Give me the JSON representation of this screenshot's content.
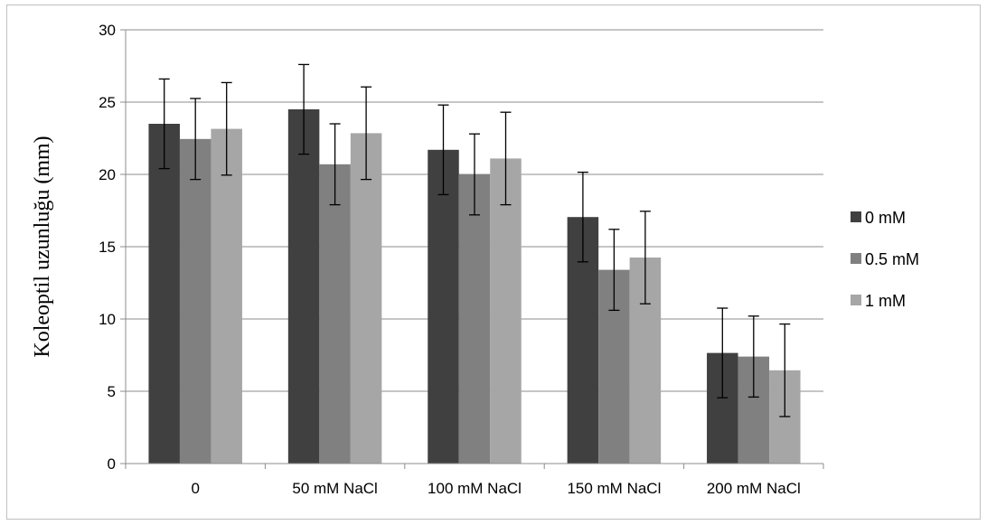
{
  "chart_data": {
    "type": "bar",
    "title": "",
    "xlabel": "",
    "ylabel": "Koleoptil uzunluğu (mm)",
    "ylim": [
      0,
      30
    ],
    "yticks": [
      0,
      5,
      10,
      15,
      20,
      25,
      30
    ],
    "grid": true,
    "legend_position": "right",
    "categories": [
      "0",
      "50 mM NaCl",
      "100 mM NaCl",
      "150 mM NaCl",
      "200 mM NaCl"
    ],
    "series": [
      {
        "name": "0 mM",
        "color": "#404040",
        "values": [
          23.5,
          24.5,
          21.7,
          17.05,
          7.65
        ],
        "errors": [
          3.1,
          3.1,
          3.1,
          3.1,
          3.1
        ]
      },
      {
        "name": "0.5 mM",
        "color": "#808080",
        "values": [
          22.45,
          20.7,
          20.0,
          13.4,
          7.4
        ],
        "errors": [
          2.8,
          2.8,
          2.8,
          2.8,
          2.8
        ]
      },
      {
        "name": "1 mM",
        "color": "#a6a6a6",
        "values": [
          23.15,
          22.85,
          21.1,
          14.25,
          6.45
        ],
        "errors": [
          3.2,
          3.2,
          3.2,
          3.2,
          3.2
        ]
      }
    ]
  }
}
